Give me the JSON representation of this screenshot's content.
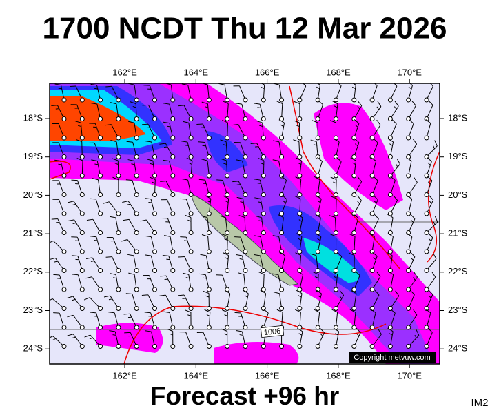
{
  "header": {
    "title": "1700 NCDT Thu 12 Mar 2026"
  },
  "map": {
    "lon_labels": [
      "162°E",
      "164°E",
      "166°E",
      "168°E",
      "170°E"
    ],
    "lat_labels": [
      "18°S",
      "19°S",
      "20°S",
      "21°S",
      "22°S",
      "23°S",
      "24°S"
    ],
    "isobar_label": "1006",
    "copyright": "Copyright metvuw.com"
  },
  "footer": {
    "forecast": "Forecast +96 hr",
    "image_id": "IM2"
  }
}
